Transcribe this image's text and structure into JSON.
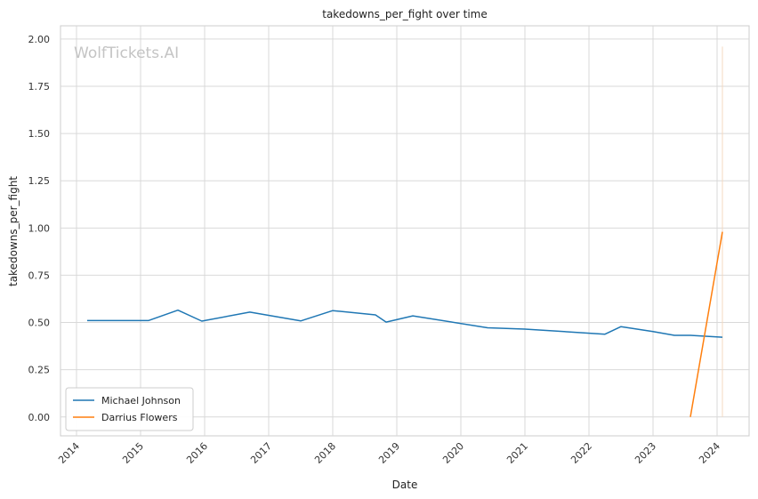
{
  "chart_data": {
    "type": "line",
    "title": "takedowns_per_fight over time",
    "xlabel": "Date",
    "ylabel": "takedowns_per_fight",
    "watermark": "WolfTickets.AI",
    "x_ticks": [
      "2014",
      "2015",
      "2016",
      "2017",
      "2018",
      "2019",
      "2020",
      "2021",
      "2022",
      "2023",
      "2024"
    ],
    "y_ticks": [
      "0.00",
      "0.25",
      "0.50",
      "0.75",
      "1.00",
      "1.25",
      "1.50",
      "1.75",
      "2.00"
    ],
    "xlim": [
      "2013-10-01",
      "2024-07-01"
    ],
    "ylim": [
      -0.1,
      2.07
    ],
    "grid": true,
    "legend_position": "lower-left",
    "series": [
      {
        "name": "Michael Johnson",
        "color": "#1f77b4",
        "points": [
          [
            "2014-03-01",
            0.51
          ],
          [
            "2015-02-15",
            0.51
          ],
          [
            "2015-08-01",
            0.565
          ],
          [
            "2015-12-15",
            0.507
          ],
          [
            "2016-09-15",
            0.555
          ],
          [
            "2017-07-01",
            0.508
          ],
          [
            "2018-01-01",
            0.563
          ],
          [
            "2018-09-01",
            0.54
          ],
          [
            "2018-11-01",
            0.502
          ],
          [
            "2019-04-01",
            0.535
          ],
          [
            "2020-06-01",
            0.472
          ],
          [
            "2021-01-01",
            0.465
          ],
          [
            "2022-04-01",
            0.438
          ],
          [
            "2022-07-01",
            0.478
          ],
          [
            "2023-01-01",
            0.452
          ],
          [
            "2023-05-01",
            0.432
          ],
          [
            "2023-08-01",
            0.432
          ],
          [
            "2024-02-01",
            0.422
          ]
        ]
      },
      {
        "name": "Darrius Flowers",
        "color": "#ff7f0e",
        "points": [
          [
            "2023-08-01",
            0.0
          ],
          [
            "2024-02-01",
            0.98
          ]
        ]
      }
    ],
    "reference_line": {
      "x": "2024-02-01",
      "y_range": [
        0.0,
        1.96
      ],
      "color": "#f5d9c0"
    }
  }
}
